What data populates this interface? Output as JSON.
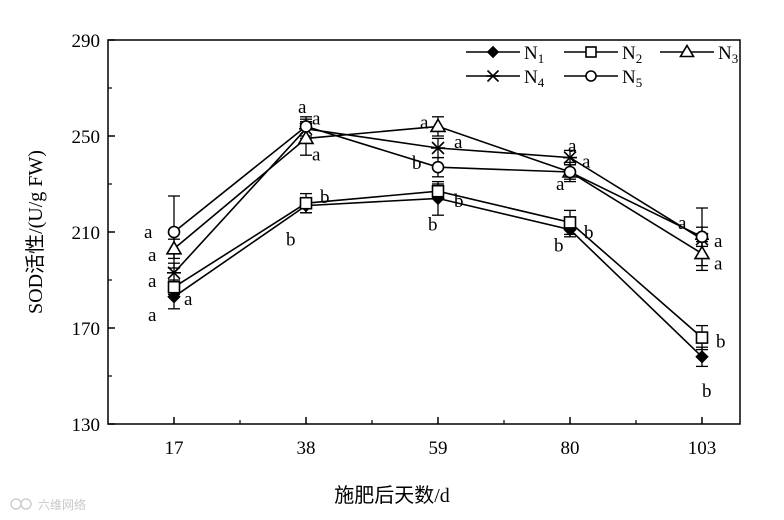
{
  "chart_data": {
    "type": "line",
    "xlabel": "施肥后天数/d",
    "ylabel": "SOD活性/(U/g FW)",
    "x": [
      17,
      38,
      59,
      80,
      103
    ],
    "x_tick_labels": [
      "17",
      "38",
      "59",
      "80",
      "103"
    ],
    "ylim": [
      130,
      290
    ],
    "y_ticks": [
      130,
      170,
      210,
      250,
      290
    ],
    "grid": false,
    "legend_placement": "top-right",
    "series": [
      {
        "name": "N1",
        "label_main": "N",
        "label_sub": "1",
        "marker": "diamond-filled",
        "values": [
          183,
          221,
          224,
          211,
          158
        ],
        "errors": [
          5,
          3,
          7,
          3,
          4
        ],
        "sig": [
          "a",
          "b",
          "b",
          "b",
          "b"
        ]
      },
      {
        "name": "N2",
        "label_main": "N",
        "label_sub": "2",
        "marker": "square-open",
        "values": [
          187,
          222,
          227,
          214,
          166
        ],
        "errors": [
          3,
          4,
          3,
          5,
          5
        ],
        "sig": [
          "a",
          "b",
          "b",
          "b",
          "b"
        ]
      },
      {
        "name": "N3",
        "label_main": "N",
        "label_sub": "3",
        "marker": "triangle-open",
        "values": [
          203,
          249,
          254,
          235,
          201
        ],
        "errors": [
          4,
          7,
          4,
          4,
          5
        ],
        "sig": [
          "a",
          "a",
          "a",
          "a",
          "a"
        ]
      },
      {
        "name": "N4",
        "label_main": "N",
        "label_sub": "4",
        "marker": "asterisk",
        "values": [
          193,
          253,
          245,
          241,
          207
        ],
        "errors": [
          4,
          4,
          4,
          3,
          13
        ],
        "sig": [
          "a",
          "a",
          "a",
          "a",
          "a"
        ]
      },
      {
        "name": "N5",
        "label_main": "N",
        "label_sub": "5",
        "marker": "circle-open",
        "values": [
          210,
          254,
          237,
          235,
          208
        ],
        "errors": [
          15,
          4,
          4,
          3,
          4
        ],
        "sig": [
          "a",
          "a",
          "b",
          "a",
          "a"
        ]
      }
    ],
    "watermark": "六维网络"
  }
}
